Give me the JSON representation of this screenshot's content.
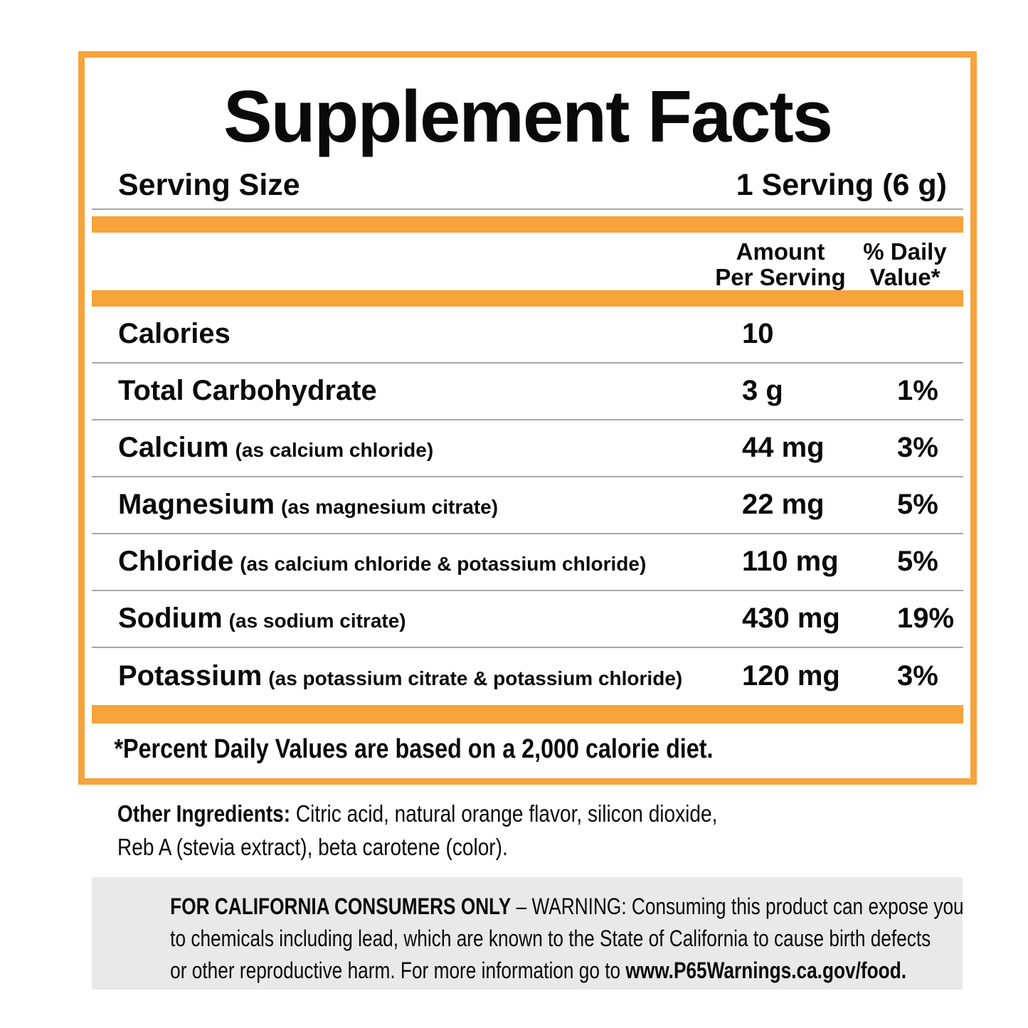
{
  "theme": {
    "orange": "#F6A43B",
    "rule_gray": "#A8A8A8",
    "warning_bg": "#E9E9E9",
    "text": "#0A0A0A"
  },
  "panel": {
    "title": "Supplement Facts",
    "serving_size_label": "Serving Size",
    "serving_size_value": "1 Serving (6 g)",
    "columns": {
      "amount_line1": "Amount",
      "amount_line2": "Per Serving",
      "dv_line1": "% Daily",
      "dv_line2": "Value*"
    },
    "footnote": "*Percent Daily Values are based on a 2,000 calorie diet."
  },
  "facts": {
    "rows": [
      {
        "name": "Calories",
        "detail": "",
        "amount": "10",
        "dv": ""
      },
      {
        "name": "Total Carbohydrate",
        "detail": "",
        "amount": "3 g",
        "dv": "1%"
      },
      {
        "name": "Calcium",
        "detail": "(as calcium chloride)",
        "amount": "44 mg",
        "dv": "3%"
      },
      {
        "name": "Magnesium",
        "detail": "(as magnesium citrate)",
        "amount": "22 mg",
        "dv": "5%"
      },
      {
        "name": "Chloride",
        "detail": "(as calcium chloride & potassium chloride)",
        "amount": "110 mg",
        "dv": "5%"
      },
      {
        "name": "Sodium",
        "detail": "(as sodium citrate)",
        "amount": "430 mg",
        "dv": "19%"
      },
      {
        "name": "Potassium",
        "detail": "(as potassium citrate & potassium chloride)",
        "amount": "120 mg",
        "dv": "3%"
      }
    ]
  },
  "other_ingredients": {
    "label": "Other Ingredients:",
    "line1_rest": " Citric acid, natural orange flavor, silicon dioxide,",
    "line2": "Reb A (stevia extract), beta carotene (color)."
  },
  "california_warning": {
    "line1_bold": "FOR CALIFORNIA CONSUMERS ONLY",
    "line1_rest": " – WARNING: Consuming this product can expose you",
    "line2": "to chemicals including lead, which are known to the State of California to cause birth defects",
    "line3_rest": "or other reproductive harm. For more information go to ",
    "line3_bold": "www.P65Warnings.ca.gov/food."
  }
}
